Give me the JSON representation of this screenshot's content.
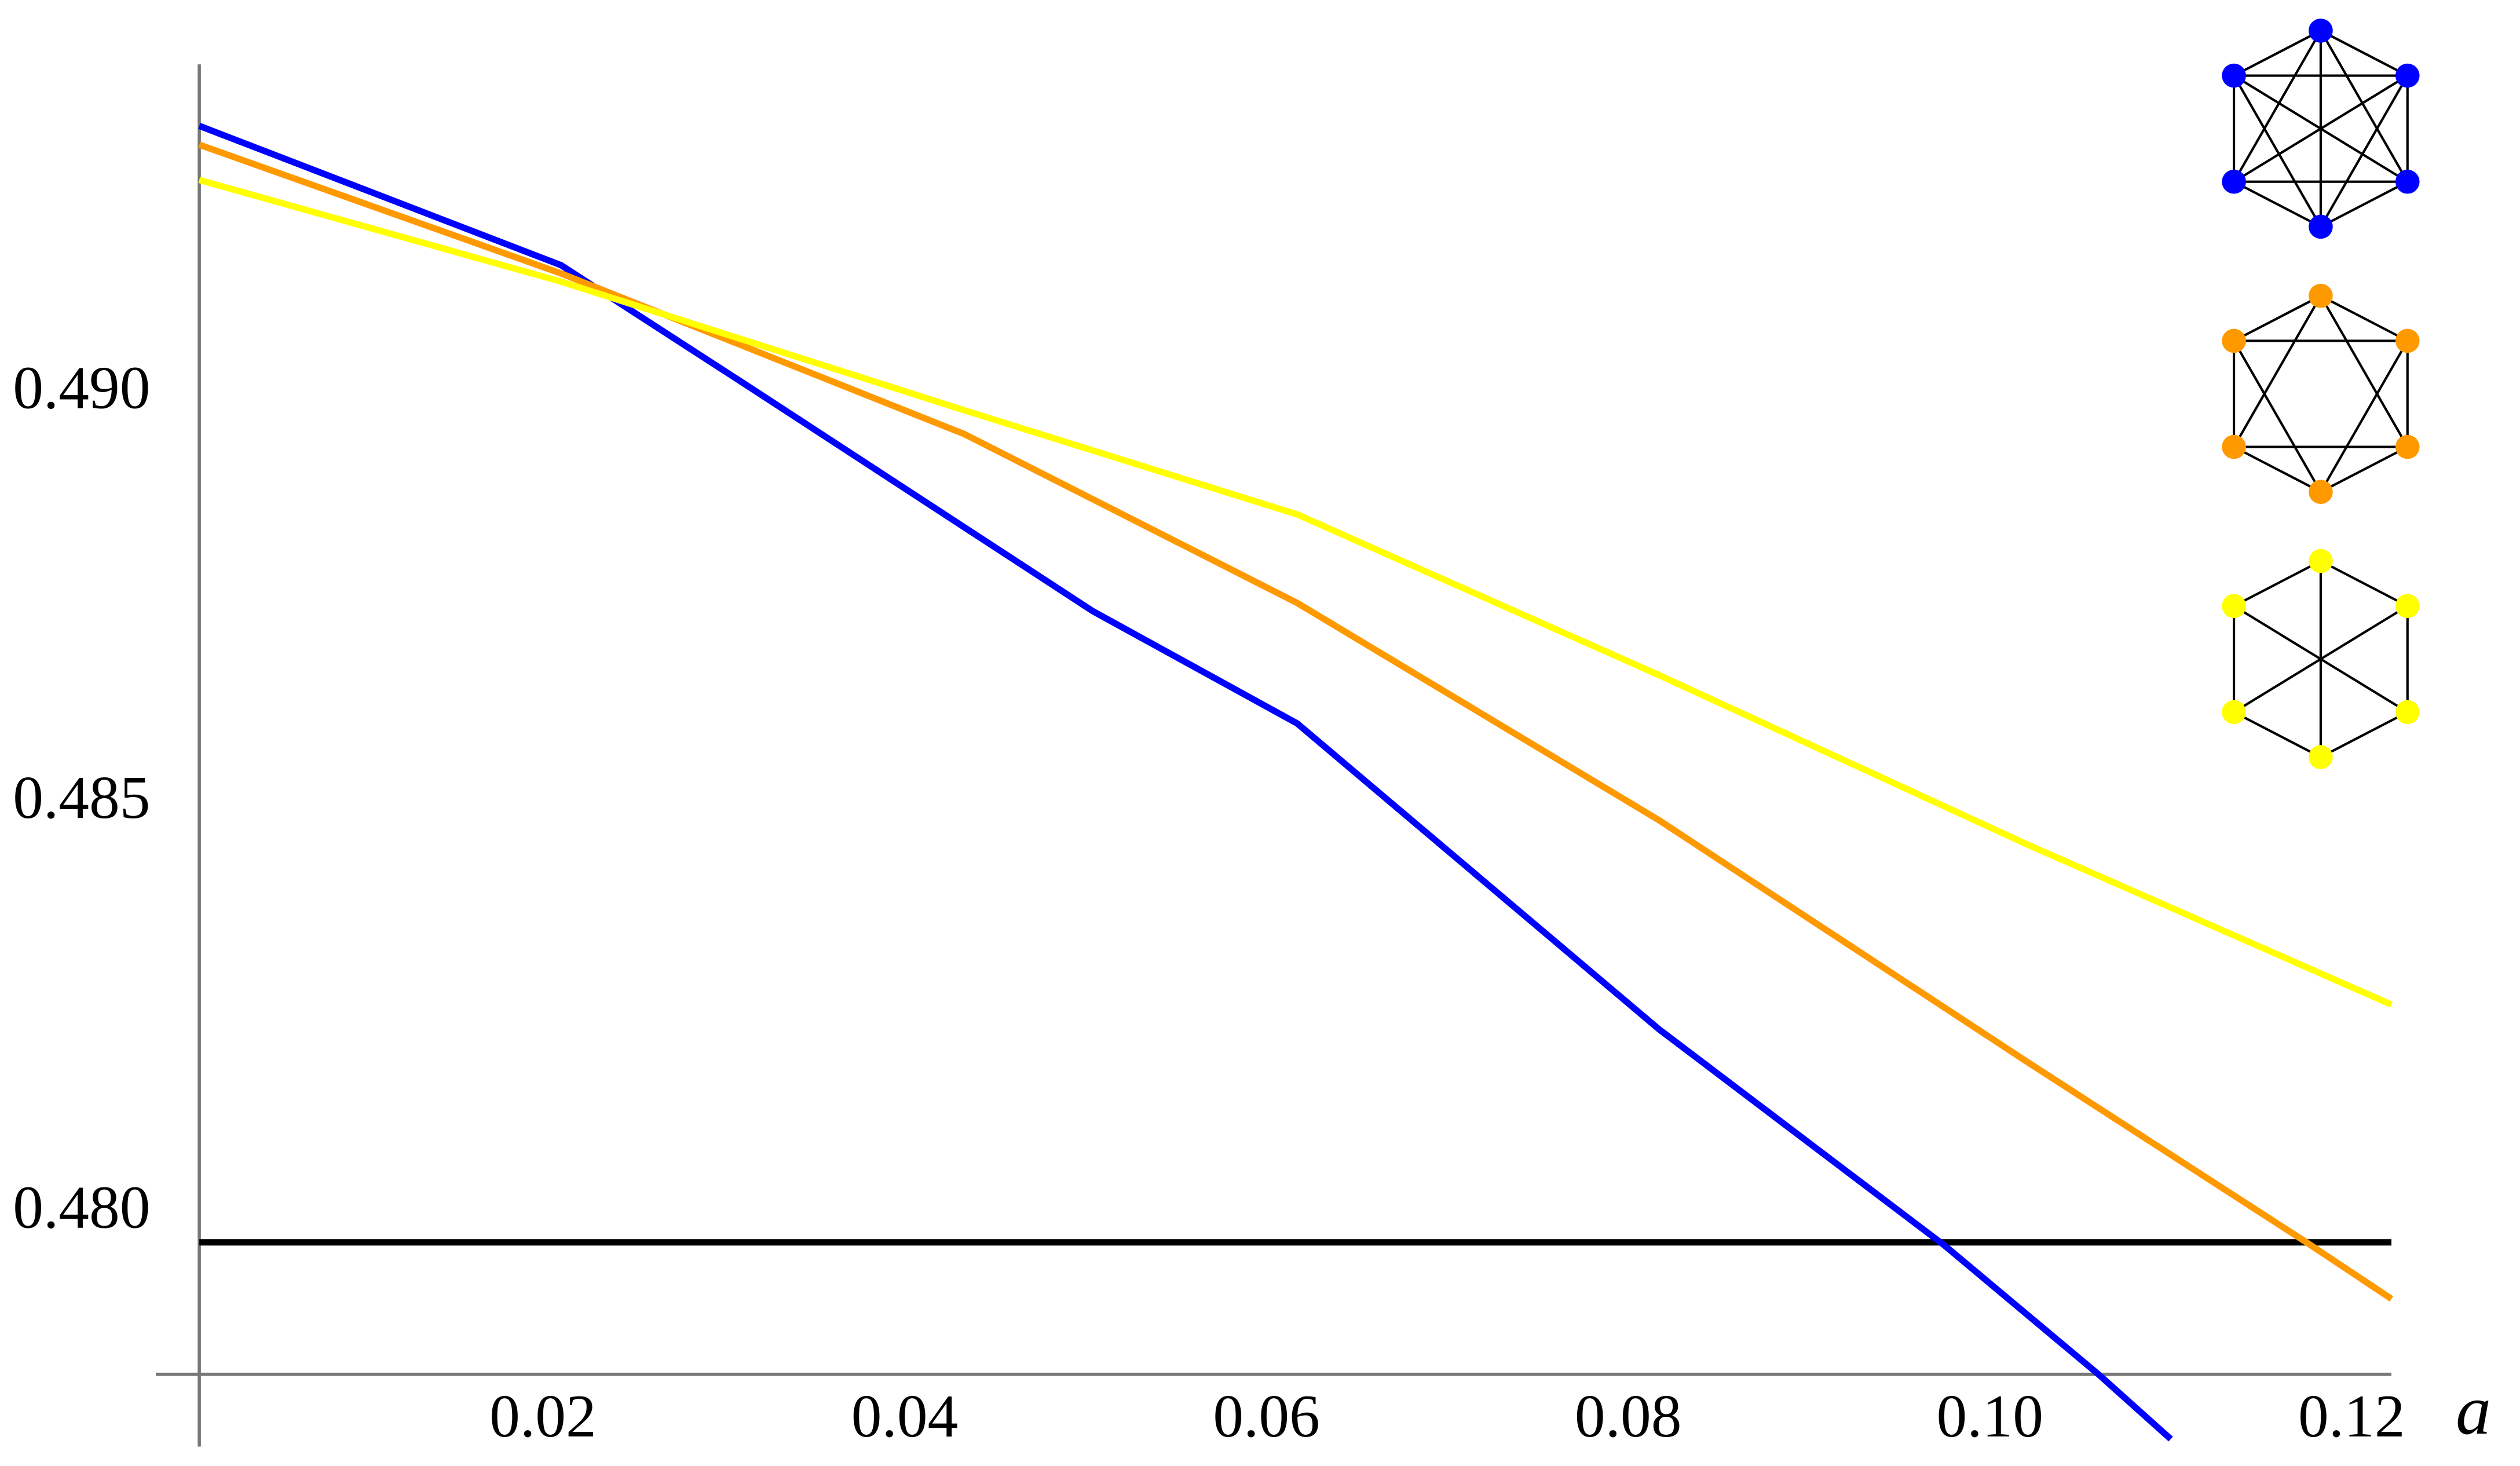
{
  "chart_data": {
    "type": "line",
    "x_label": "a",
    "xlim": [
      0.001,
      0.1222
    ],
    "ylim": [
      0.47804,
      0.49402
    ],
    "xticks": [
      0.02,
      0.04,
      0.06,
      0.08,
      {
        "value": 0.1,
        "label": "0.10"
      },
      0.12
    ],
    "yticks": [
      {
        "value": 0.48,
        "label": "0.480"
      },
      0.485,
      {
        "value": 0.49,
        "label": "0.490"
      }
    ],
    "grid": false,
    "reference_line": {
      "value": 0.47965,
      "color": "#000000"
    },
    "series": [
      {
        "color": "#0000ff",
        "x": [
          0.001,
          0.021,
          0.0313,
          0.0504,
          0.0617,
          0.0817,
          0.0975,
          0.106,
          0.11
        ],
        "values": [
          0.49327,
          0.49157,
          0.4901,
          0.48735,
          0.48598,
          0.48225,
          0.47961,
          0.47804,
          0.47725
        ]
      },
      {
        "color": "#ff9900",
        "x": [
          0.001,
          0.021,
          0.0433,
          0.0617,
          0.0817,
          0.102,
          0.1175,
          0.1222
        ],
        "values": [
          0.49304,
          0.49147,
          0.48951,
          0.48745,
          0.4848,
          0.48186,
          0.47965,
          0.47896
        ]
      },
      {
        "color": "#ffff00",
        "x": [
          0.001,
          0.021,
          0.0433,
          0.0617,
          0.0817,
          0.102,
          0.1222
        ],
        "values": [
          0.49261,
          0.49137,
          0.4898,
          0.48853,
          0.48657,
          0.48451,
          0.48255
        ]
      }
    ]
  }
}
